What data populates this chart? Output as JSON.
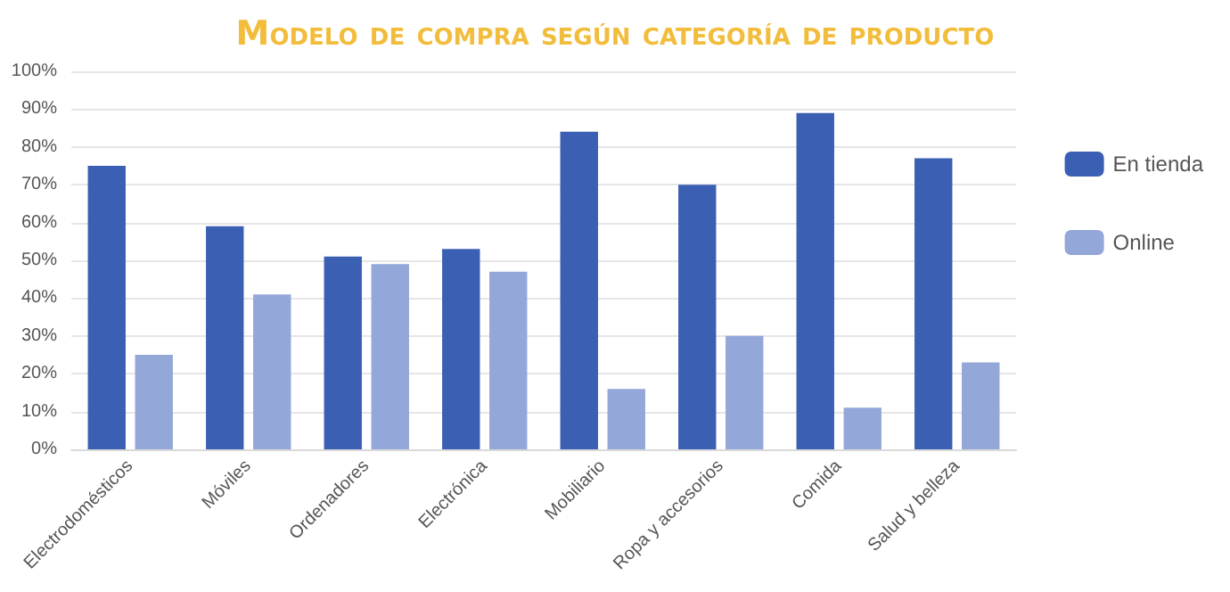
{
  "chart_data": {
    "type": "bar",
    "title": "Modelo de compra según categoría de producto",
    "categories": [
      "Electrodomésticos",
      "Móviles",
      "Ordenadores",
      "Electrónica",
      "Mobiliario",
      "Ropa y accesorios",
      "Comida",
      "Salud y belleza"
    ],
    "series": [
      {
        "name": "En tienda",
        "color": "#3a5fb3",
        "values": [
          75,
          59,
          51,
          53,
          84,
          70,
          89,
          77
        ]
      },
      {
        "name": "Online",
        "color": "#93a7d9",
        "values": [
          25,
          41,
          49,
          47,
          16,
          30,
          11,
          23
        ]
      }
    ],
    "ylim": [
      0,
      100
    ],
    "yticks": [
      {
        "value": 0,
        "label": "0%"
      },
      {
        "value": 10,
        "label": "10%"
      },
      {
        "value": 20,
        "label": "20%"
      },
      {
        "value": 30,
        "label": "30%"
      },
      {
        "value": 40,
        "label": "40%"
      },
      {
        "value": 50,
        "label": "50%"
      },
      {
        "value": 60,
        "label": "60%"
      },
      {
        "value": 70,
        "label": "70%"
      },
      {
        "value": 80,
        "label": "80%"
      },
      {
        "value": 90,
        "label": "90%"
      },
      {
        "value": 100,
        "label": "100%"
      }
    ],
    "grid": "y",
    "legend": "right"
  }
}
